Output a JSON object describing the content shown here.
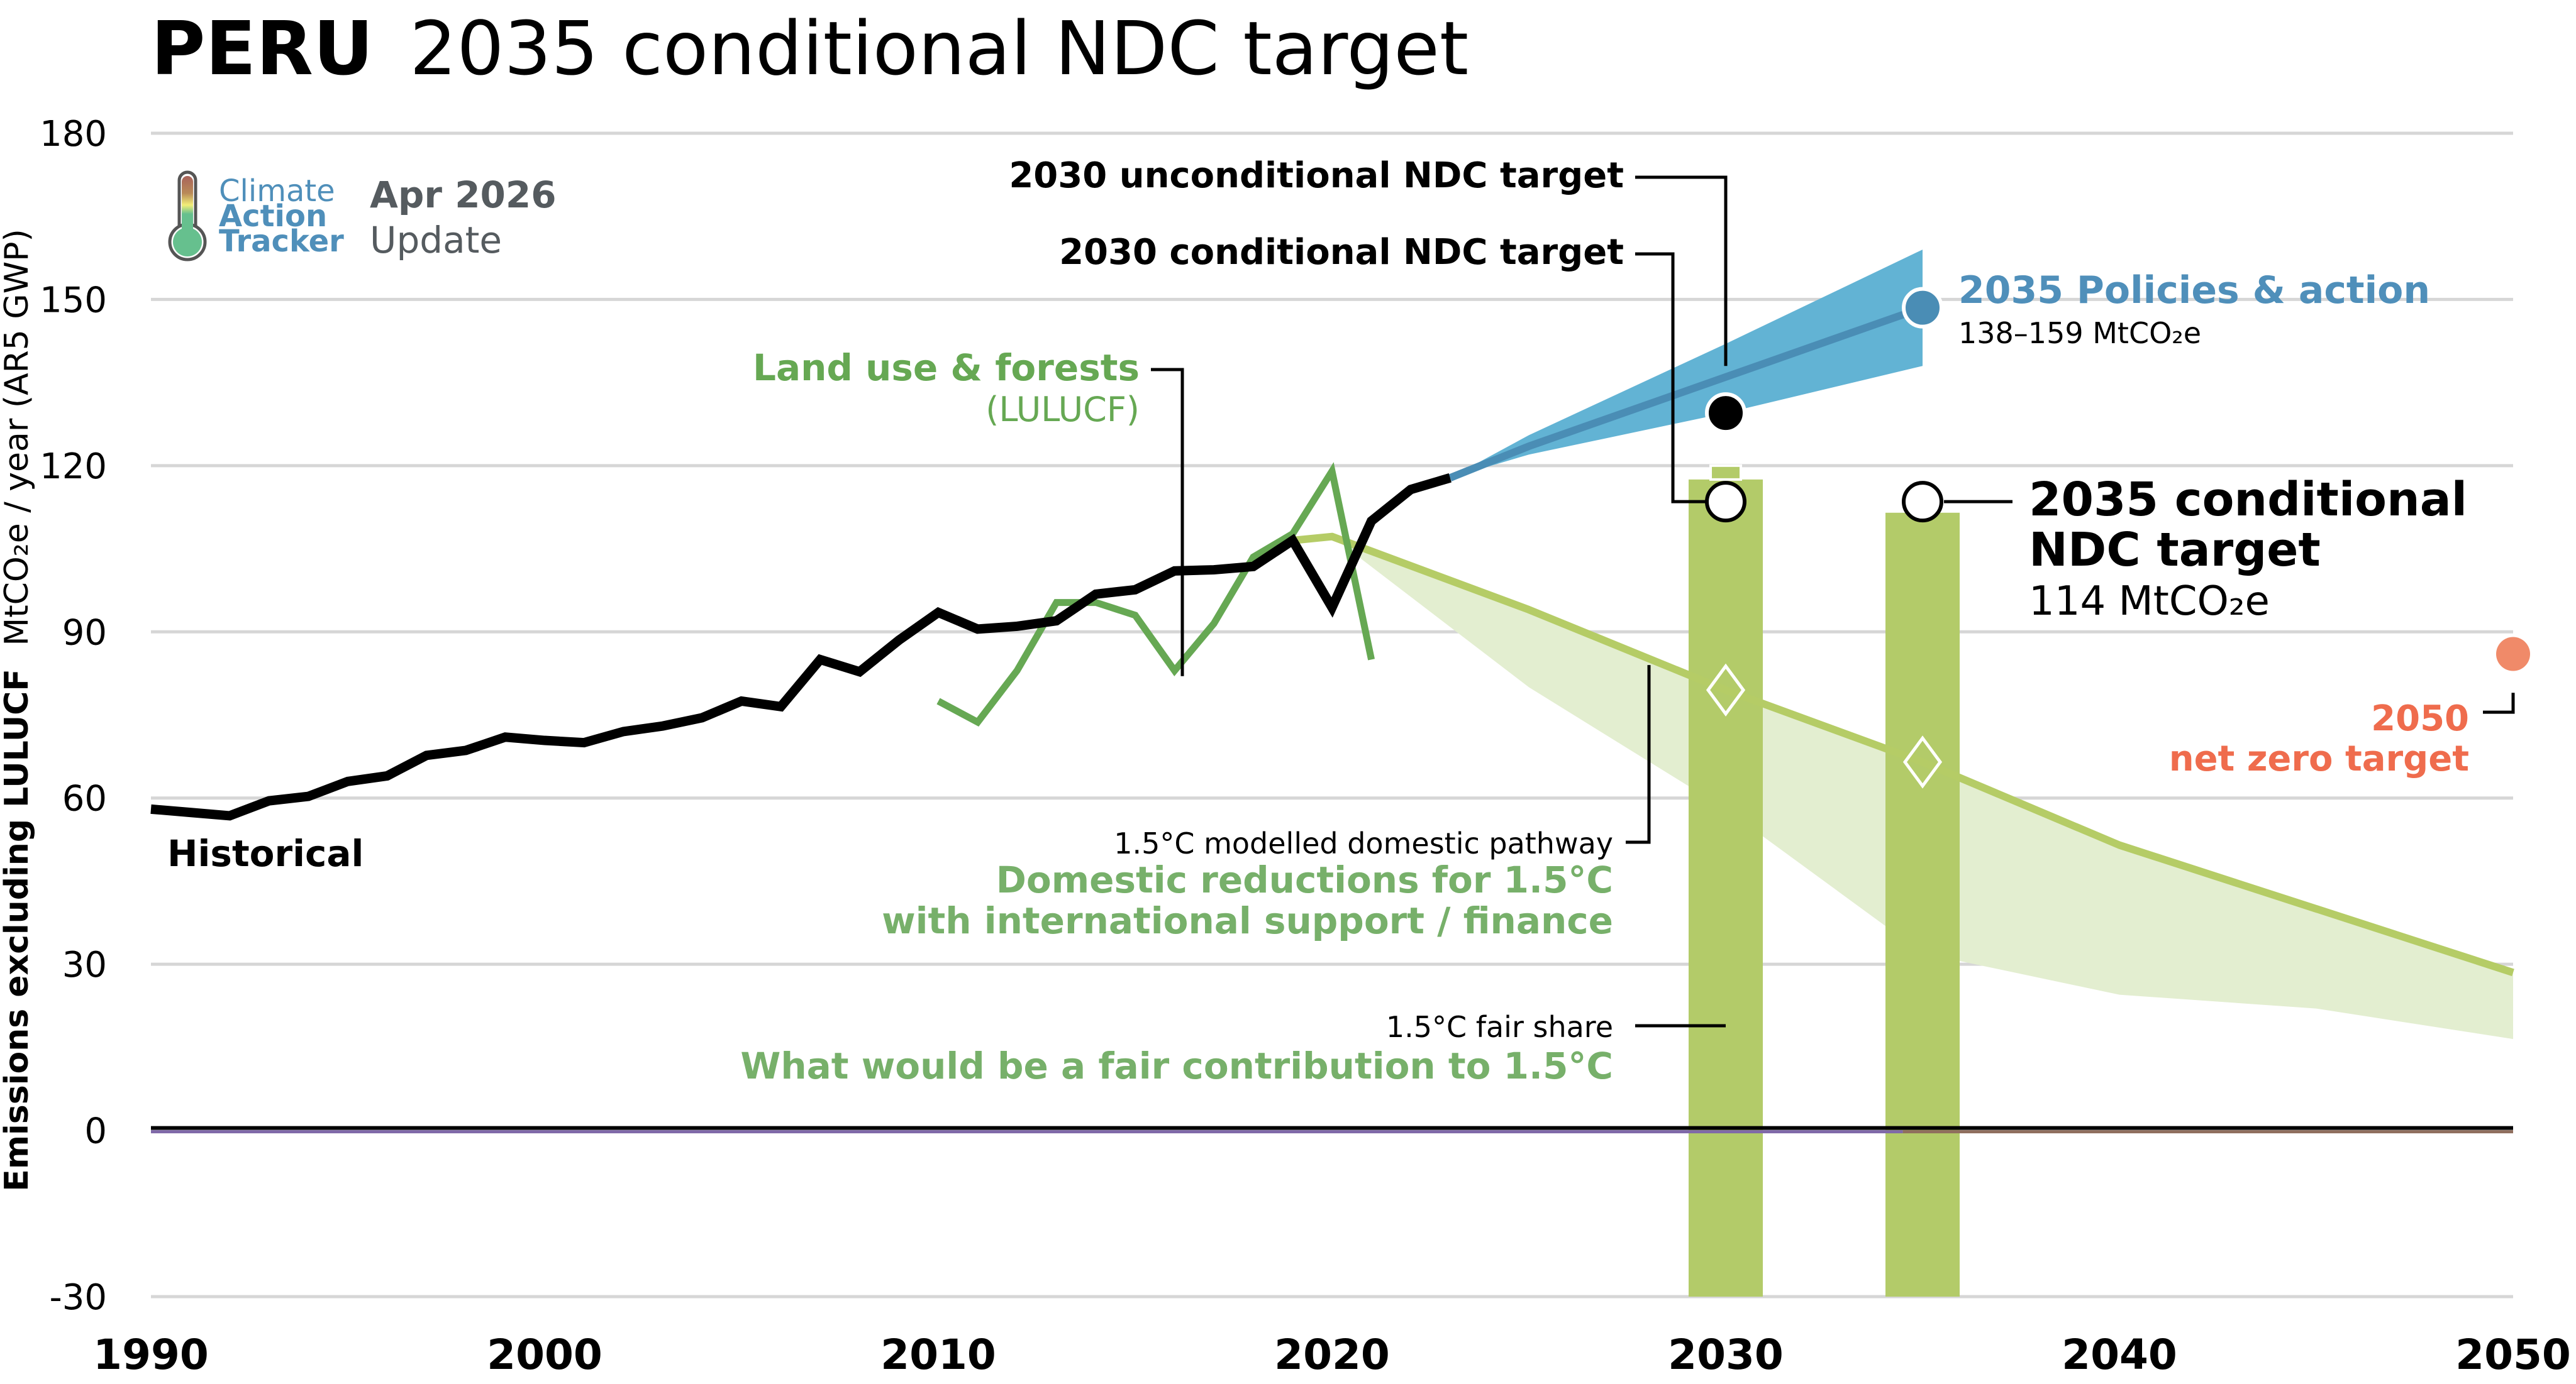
{
  "header": {
    "country": "PERU",
    "subtitle": "2035 conditional NDC target"
  },
  "logo": {
    "line1": "Climate",
    "line2": "Action",
    "line3": "Tracker",
    "icon": "thermometer-icon",
    "update_date": "Apr 2026",
    "update_label": "Update"
  },
  "colors": {
    "historical": "#000000",
    "lulucf": "#66a853",
    "policies": "#62b3d4",
    "policies_median": "#4a8db5",
    "pathway_line": "#b5cc66",
    "pathway_band": "#e3eed0",
    "fair_share_bar": "#b3cb69",
    "net_zero": "#f08a69",
    "net_zero_text": "#ef6c4d",
    "policies_text": "#4f8fba",
    "logo_blue": "#4f8fba",
    "logo_grey": "#555b5f",
    "zero_purple": "#7f68a8",
    "zero_brown": "#8f6e5d",
    "grid": "#d6d6d6"
  },
  "chart_data": {
    "type": "line",
    "title": "PERU 2035 conditional NDC target",
    "ylabel_bold": "Emissions excluding LULUCF",
    "ylabel_rest": "MtCO₂e / year (AR5 GWP)",
    "xlabel": "",
    "xlim": [
      1990,
      2050
    ],
    "ylim": [
      -30,
      180
    ],
    "yticks": [
      180,
      150,
      120,
      90,
      60,
      30,
      0,
      -30
    ],
    "xticks": [
      1990,
      2000,
      2010,
      2020,
      2030,
      2040,
      2050
    ],
    "grid": true,
    "series": [
      {
        "name": "Historical",
        "label": "Historical",
        "x": [
          1990,
          1991,
          1992,
          1993,
          1994,
          1995,
          1996,
          1997,
          1998,
          1999,
          2000,
          2001,
          2002,
          2003,
          2004,
          2005,
          2006,
          2007,
          2008,
          2009,
          2010,
          2011,
          2012,
          2013,
          2014,
          2015,
          2016,
          2017,
          2018,
          2019,
          2020,
          2021,
          2022,
          2023
        ],
        "values": [
          58.0,
          57.4,
          56.8,
          59.5,
          60.3,
          63.0,
          64.0,
          67.7,
          68.6,
          71.0,
          70.4,
          70.0,
          72.0,
          73.0,
          74.5,
          77.5,
          76.5,
          85.0,
          82.8,
          88.5,
          93.5,
          90.5,
          91.0,
          92.0,
          96.8,
          97.6,
          101.0,
          101.2,
          101.8,
          106.5,
          94.4,
          110.0,
          115.7,
          117.8
        ]
      },
      {
        "name": "Land use & forests (LULUCF)",
        "label_line1": "Land use & forests",
        "label_line2": "(LULUCF)",
        "x": [
          2010,
          2011,
          2012,
          2013,
          2014,
          2015,
          2016,
          2017,
          2018,
          2019,
          2020,
          2021
        ],
        "values": [
          77.5,
          73.7,
          83.0,
          95.3,
          95.3,
          93.0,
          83.0,
          91.5,
          103.5,
          107.7,
          119.0,
          85.0
        ]
      },
      {
        "name": "2035 Policies & action",
        "label": "2035 Policies & action",
        "range_label": "138–159 MtCO₂e",
        "x": [
          2023,
          2025,
          2030,
          2035
        ],
        "median": [
          117.8,
          123.5,
          136.0,
          148.5
        ],
        "upper": [
          117.8,
          125.5,
          142.0,
          159.0
        ],
        "lower": [
          117.8,
          122.0,
          129.5,
          138.0
        ]
      },
      {
        "name": "1.5°C modelled domestic pathway",
        "label": "1.5°C modelled domestic pathway",
        "x": [
          2019,
          2020,
          2025,
          2030,
          2035,
          2040,
          2045,
          2050
        ],
        "values": [
          106.5,
          107.2,
          94.0,
          79.5,
          66.5,
          51.5,
          40.0,
          28.5
        ],
        "band_upper": [
          106.5,
          107.2,
          94.0,
          79.5,
          66.5,
          51.5,
          40.0,
          28.5
        ],
        "band_lower": [
          106.5,
          107.2,
          80.0,
          58.0,
          32.0,
          24.5,
          22.0,
          16.5
        ]
      }
    ],
    "fair_share_bars": [
      {
        "year": 2030,
        "top": 117.5,
        "top_center": 120.0,
        "bottom": -30
      },
      {
        "year": 2035,
        "top": 111.5,
        "bottom": -30
      }
    ],
    "markers": [
      {
        "name": "2030 unconditional NDC target",
        "label": "2030 unconditional NDC target",
        "year": 2030,
        "value": 129.5,
        "style": "filled-black"
      },
      {
        "name": "2030 conditional NDC target",
        "label": "2030 conditional NDC target",
        "year": 2030,
        "value": 113.5,
        "style": "hollow"
      },
      {
        "name": "2035 conditional NDC target",
        "label_line1": "2035 conditional",
        "label_line2": "NDC target",
        "value_label": "114 MtCO₂e",
        "year": 2035,
        "value": 113.5,
        "style": "hollow"
      },
      {
        "name": "2035 Policies & action",
        "year": 2035,
        "value": 148.5,
        "style": "filled-blue"
      },
      {
        "name": "2050 net zero target",
        "label_line1": "2050",
        "label_line2": "net zero target",
        "year": 2050,
        "value": 86.0,
        "style": "filled-orange"
      },
      {
        "name": "1.5°C pathway 2030",
        "year": 2030,
        "value": 79.5,
        "style": "diamond"
      },
      {
        "name": "1.5°C pathway 2035",
        "year": 2035,
        "value": 66.5,
        "style": "diamond"
      }
    ],
    "annotations": {
      "domestic_line1": "Domestic reductions for 1.5°C",
      "domestic_line2": "with international support / finance",
      "fair_share_small": "1.5°C fair share",
      "fair_share_big": "What would be a fair contribution to 1.5°C"
    }
  }
}
